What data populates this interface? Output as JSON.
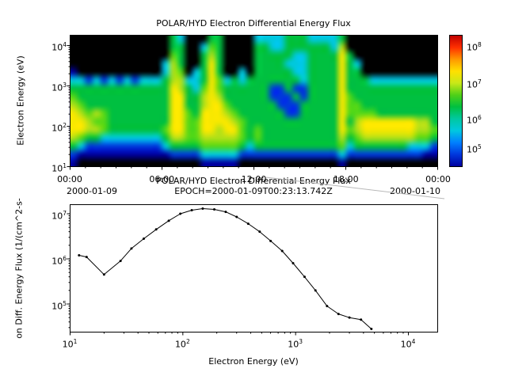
{
  "chart_data": [
    {
      "type": "heatmap",
      "panel": "top",
      "title": "POLAR/HYD  Electron Differential Energy Flux",
      "ylabel": "Electron Energy (eV)",
      "y_scale": "log",
      "y_range_ev": [
        10,
        18000
      ],
      "y_tick_exponents": [
        4,
        3,
        2,
        1
      ],
      "x_ticks": [
        "00:00",
        "06:00",
        "12:00",
        "18:00",
        "00:00"
      ],
      "x_start_date": "2000-01-09",
      "x_end_date": "2000-01-10",
      "colorbar_scale": "log",
      "colorbar_tick_exponents": [
        8,
        7,
        6,
        5
      ],
      "colorbar_colors_top_to_bottom": [
        "#c00000",
        "#ff3000",
        "#ff9800",
        "#ffe000",
        "#c8e818",
        "#50d018",
        "#00c040",
        "#00c8a0",
        "#00c8e0",
        "#0080ff",
        "#0038dd",
        "#0000a0"
      ],
      "grid_encoding": "rows are log-energy bins from ~18 keV (top) to ~10 eV (bottom); 48 half-hour time columns spanning 2000-01-09 00:00 to 2000-01-10 00:00; each char maps to a flux color via grid_palette ('.'=no data/black, '1' lowest flux ~1e4.7, '7' high flux ~1e7, '9' ~1e8)",
      "grid_palette": {
        ".": "#000000",
        "1": "#0000a0",
        "2": "#0038dd",
        "3": "#00c8e0",
        "4": "#00c040",
        "5": "#55d818",
        "6": "#b0e018",
        "7": "#f8e800",
        "8": "#ffa000",
        "9": "#ff2000"
      },
      "grid_rows_top_to_bottom": [
        ".............43...44....333344433334............",
        ".............44..354....443344444436............",
        ".............54..464....4444433444474...........",
        "............364..474....44443334444743..........",
        "1...........365.3474..3.44444334444744..........",
        "332323232333466334753434444444344447444333333333",
        "444444444444476435754444442242244447444444444444",
        "544444444444477446764444442224244447544444444444",
        "654444444444477446775444444222444447554444444444",
        "765654444444477547776544444422444447555544444444",
        "776554444444477557777654444444444447467777777664",
        "776654444444577557767754544444444447567777777665",
        "654433333333466556666654544444444446456666666554",
        "432222222222344445555543444444444445344444443332",
        "211111111111122223333322222222222223222222222211",
        "1................11111.............1............"
      ]
    },
    {
      "type": "line",
      "panel": "bottom",
      "title_line1": "POLAR/HYD  Electron Differential Energy Flux",
      "title_line2": "EPOCH=2000-01-09T00:23:13.742Z",
      "xlabel": "Electron Energy (eV)",
      "ylabel_visible": "on Diff. Energy Flux (1/(cm^2-s-",
      "x_scale": "log",
      "y_scale": "log",
      "x_tick_exponents": [
        1,
        2,
        3,
        4
      ],
      "y_tick_exponents": [
        7,
        6,
        5
      ],
      "line_color": "#000000",
      "marker": "dot",
      "x": [
        12,
        14,
        20,
        28,
        35,
        45,
        58,
        75,
        95,
        120,
        150,
        190,
        240,
        300,
        380,
        480,
        600,
        760,
        950,
        1200,
        1500,
        1900,
        2400,
        3000,
        3800,
        4700
      ],
      "y": [
        1200000.0,
        1100000.0,
        450000.0,
        900000.0,
        1700000.0,
        2800000.0,
        4500000.0,
        7000000.0,
        10000000.0,
        12000000.0,
        13000000.0,
        12500000.0,
        11000000.0,
        8500000.0,
        6000000.0,
        4000000.0,
        2500000.0,
        1500000.0,
        800000.0,
        400000.0,
        200000.0,
        90000.0,
        60000.0,
        50000.0,
        45000.0,
        28000.0
      ]
    }
  ]
}
